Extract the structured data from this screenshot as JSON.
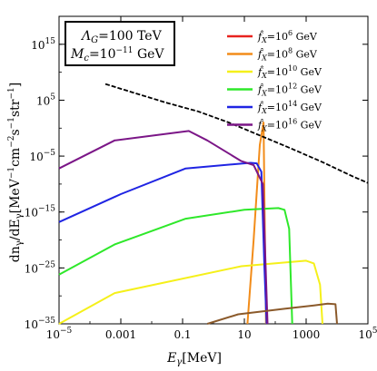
{
  "chart_data": {
    "type": "line",
    "xlabel": {
      "main": "E",
      "sub": "γ",
      "unit": "[MeV]"
    },
    "ylabel": {
      "pre": "dn",
      "sub1": "γ",
      "mid": "/dE",
      "sub2": "γ",
      "unit": "[MeV",
      "e1": "−1",
      "c1": "cm",
      "e2": "−2",
      "c2": "s",
      "e3": "−1",
      "c3": "str",
      "e4": "−1",
      "close": "]"
    },
    "x_log10_range": [
      -5,
      5
    ],
    "y_log10_range": [
      -35,
      20
    ],
    "x_ticks": [
      {
        "log10": -5,
        "label": "10",
        "exp": "−5"
      },
      {
        "log10": -3,
        "label": "0.001",
        "exp": ""
      },
      {
        "log10": -1,
        "label": "0.1",
        "exp": ""
      },
      {
        "log10": 1,
        "label": "10",
        "exp": ""
      },
      {
        "log10": 3,
        "label": "1000",
        "exp": ""
      },
      {
        "log10": 5,
        "label": "10",
        "exp": "5"
      }
    ],
    "y_ticks": [
      {
        "log10": 15,
        "label": "10",
        "exp": "15"
      },
      {
        "log10": 5,
        "label": "10",
        "exp": "5"
      },
      {
        "log10": -5,
        "label": "10",
        "exp": "−5"
      },
      {
        "log10": -15,
        "label": "10",
        "exp": "−15"
      },
      {
        "log10": -25,
        "label": "10",
        "exp": "−25"
      },
      {
        "log10": -35,
        "label": "10",
        "exp": "−35"
      }
    ],
    "info_box": {
      "line1": {
        "sym": "Λ",
        "sub": "G",
        "val": "=100 TeV"
      },
      "line2": {
        "sym": "M",
        "sub": "c",
        "val": "=10",
        "exp": "−11",
        "unit": " GeV"
      }
    },
    "legend_position": "top-right",
    "series": [
      {
        "name": "f̂",
        "sub": "X",
        "val": "=10",
        "exp": "6",
        "unit": " GeV",
        "color": "#e8231f",
        "points": []
      },
      {
        "name": "f̂",
        "sub": "X",
        "val": "=10",
        "exp": "8",
        "unit": " GeV",
        "color": "#f28c1a",
        "points": [
          [
            1.1,
            -35
          ],
          [
            1.3,
            -20
          ],
          [
            1.5,
            -3
          ],
          [
            1.62,
            1
          ],
          [
            1.7,
            -35
          ]
        ]
      },
      {
        "name": "f̂",
        "sub": "X",
        "val": "=10",
        "exp": "10",
        "unit": " GeV",
        "color": "#f5f01a",
        "points": [
          [
            -5,
            -35
          ],
          [
            -3.2,
            -29.5
          ],
          [
            0.9,
            -24.7
          ],
          [
            3.0,
            -23.7
          ],
          [
            3.25,
            -24.2
          ],
          [
            3.45,
            -28
          ],
          [
            3.53,
            -35
          ]
        ]
      },
      {
        "name": "f̂",
        "sub": "X",
        "val": "=10",
        "exp": "12",
        "unit": " GeV",
        "color": "#2ee82a",
        "points": [
          [
            -5,
            -26.2
          ],
          [
            -3.2,
            -20.8
          ],
          [
            -0.9,
            -16.2
          ],
          [
            1.0,
            -14.6
          ],
          [
            2.1,
            -14.3
          ],
          [
            2.3,
            -14.6
          ],
          [
            2.45,
            -18
          ],
          [
            2.55,
            -35
          ]
        ]
      },
      {
        "name": "f̂",
        "sub": "X",
        "val": "=10",
        "exp": "14",
        "unit": " GeV",
        "color": "#1f24e3",
        "points": [
          [
            -5,
            -16.8
          ],
          [
            -3.0,
            -11.8
          ],
          [
            -0.9,
            -7.2
          ],
          [
            1.2,
            -6.2
          ],
          [
            1.4,
            -6.3
          ],
          [
            1.55,
            -7.8
          ],
          [
            1.65,
            -25
          ],
          [
            1.72,
            -35
          ]
        ]
      },
      {
        "name": "f̂",
        "sub": "X",
        "val": "=10",
        "exp": "16",
        "unit": " GeV",
        "color": "#7b1687",
        "points": [
          [
            -5,
            -7.2
          ],
          [
            -3.2,
            -2.2
          ],
          [
            -0.8,
            -0.5
          ],
          [
            -0.2,
            -2.2
          ],
          [
            0.9,
            -5.9
          ],
          [
            1.3,
            -6.6
          ],
          [
            1.6,
            -10
          ],
          [
            1.75,
            -35
          ]
        ]
      },
      {
        "name": "",
        "color": "#8b5a2b",
        "points": [
          [
            -0.2,
            -35
          ],
          [
            0.8,
            -33.3
          ],
          [
            2.3,
            -32.3
          ],
          [
            3.25,
            -31.7
          ],
          [
            3.7,
            -31.4
          ],
          [
            3.95,
            -31.5
          ],
          [
            4.0,
            -35
          ]
        ]
      },
      {
        "name": "",
        "color": "#000000",
        "dashed": true,
        "points": [
          [
            -3.5,
            7.9
          ],
          [
            -2.5,
            6.2
          ],
          [
            -1.5,
            4.5
          ],
          [
            -0.5,
            3.0
          ],
          [
            0.5,
            1.0
          ],
          [
            1.5,
            -1.3
          ],
          [
            2.5,
            -3.6
          ],
          [
            3.5,
            -6.0
          ],
          [
            4.5,
            -8.6
          ],
          [
            5,
            -9.8
          ]
        ]
      }
    ]
  }
}
